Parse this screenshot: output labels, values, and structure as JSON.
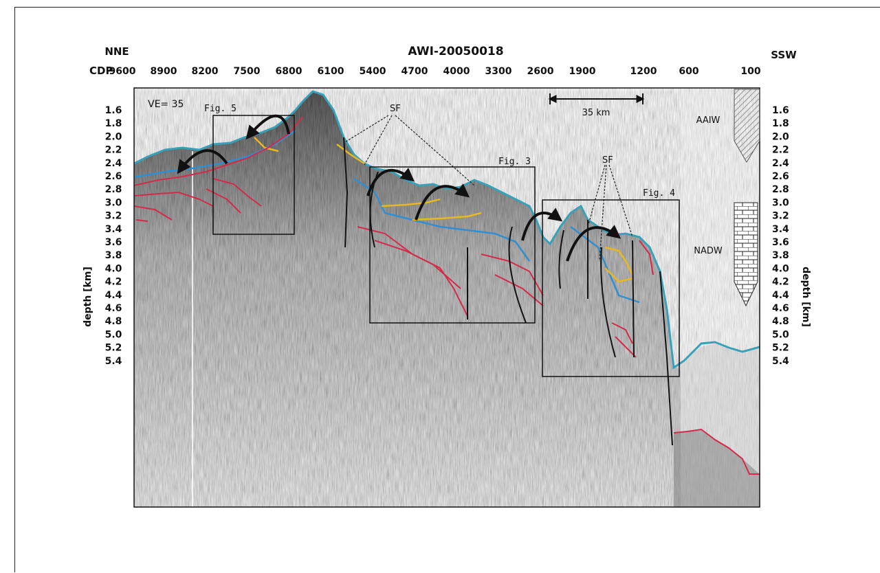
{
  "figure": {
    "title": "AWI-20050018",
    "left_direction": "NNE",
    "right_direction": "SSW",
    "cdp_label": "CDP",
    "cdp_ticks": [
      "9600",
      "8900",
      "8200",
      "7500",
      "6800",
      "6100",
      "5400",
      "4700",
      "4000",
      "3300",
      "2600",
      "1900",
      "1200",
      "600",
      "100"
    ],
    "depth_ticks": [
      "1.6",
      "1.8",
      "2.0",
      "2.2",
      "2.4",
      "2.6",
      "2.8",
      "3.0",
      "3.2",
      "3.4",
      "3.6",
      "3.8",
      "4.0",
      "4.2",
      "4.4",
      "4.6",
      "4.8",
      "5.0",
      "5.2",
      "5.4"
    ],
    "depth_axis_label": "depth [km]",
    "ve_label": "VE= 35",
    "scale_bar_label": "35 km",
    "water_masses": [
      "AAIW",
      "NADW"
    ],
    "feature_label": "SF",
    "fig_boxes": [
      "Fig. 5",
      "Fig. 3",
      "Fig. 4"
    ],
    "colors": {
      "seafloor": "#3aa0b8",
      "blue_reflector": "#2f8fd0",
      "yellow_reflector": "#e8b820",
      "red_reflector": "#d42a4a",
      "arrows": "#111111"
    },
    "icons": [
      "curved-arrow-icon",
      "hatch-column-icon",
      "brick-column-icon"
    ]
  }
}
